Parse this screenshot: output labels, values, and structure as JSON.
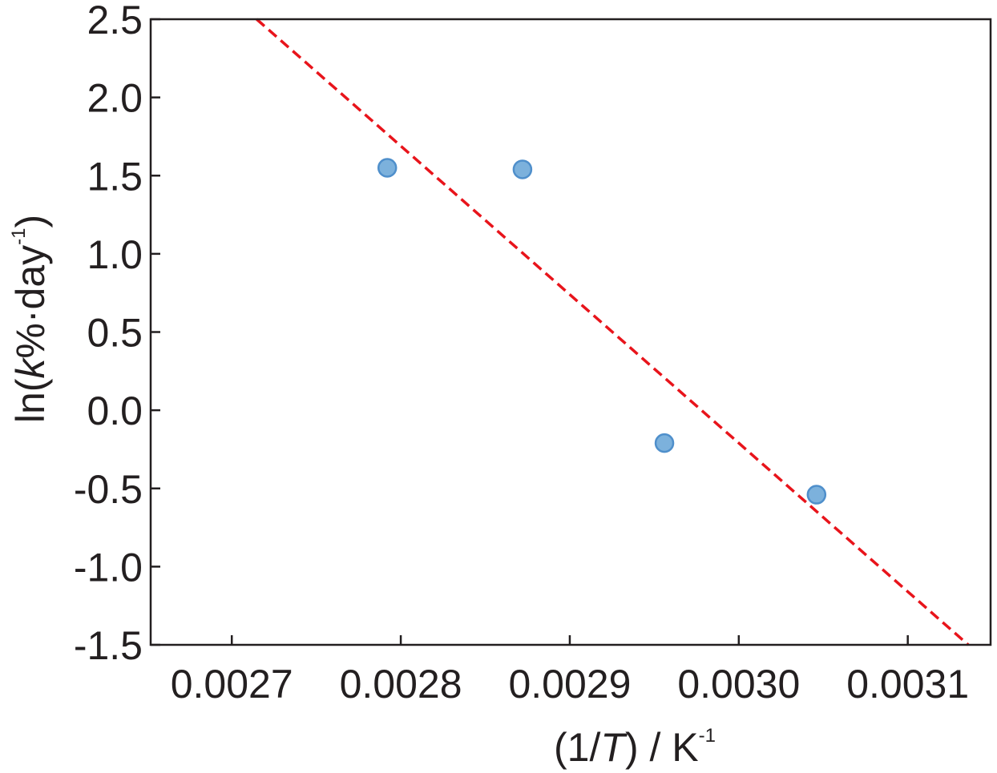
{
  "chart_data": {
    "type": "scatter",
    "title": "",
    "xlabel": {
      "prefix": "(1/",
      "symbol": "T",
      "suffix": ") / K",
      "superscript": "-1"
    },
    "ylabel": {
      "prefix": "ln(",
      "symbol": "k",
      "suffix": "%·day",
      "superscript": "-1",
      "close": ")"
    },
    "xlim": [
      0.002652,
      0.003149
    ],
    "ylim": [
      -1.5,
      2.5
    ],
    "x_ticks": [
      "0.0027",
      "0.0028",
      "0.0029",
      "0.0030",
      "0.0031"
    ],
    "x_tick_values": [
      0.0027,
      0.0028,
      0.0029,
      0.003,
      0.0031
    ],
    "y_ticks": [
      "2.5",
      "2.0",
      "1.5",
      "1.0",
      "0.5",
      "0.0",
      "-0.5",
      "-1.0",
      "-1.5"
    ],
    "y_tick_values": [
      2.5,
      2.0,
      1.5,
      1.0,
      0.5,
      0.0,
      -0.5,
      -1.0,
      -1.5
    ],
    "grid": false,
    "series": [
      {
        "kind": "scatter",
        "color": "#7cb1dc",
        "edge_color": "#4f8fcb",
        "points": [
          {
            "x": 0.002792,
            "y": 1.55
          },
          {
            "x": 0.002872,
            "y": 1.54
          },
          {
            "x": 0.002956,
            "y": -0.21
          },
          {
            "x": 0.003046,
            "y": -0.54
          }
        ]
      },
      {
        "kind": "fit-line",
        "color": "#e8141b",
        "style": "dashed",
        "points": [
          {
            "x": 0.0027147,
            "y": 2.5
          },
          {
            "x": 0.0031358,
            "y": -1.5
          }
        ]
      }
    ]
  }
}
